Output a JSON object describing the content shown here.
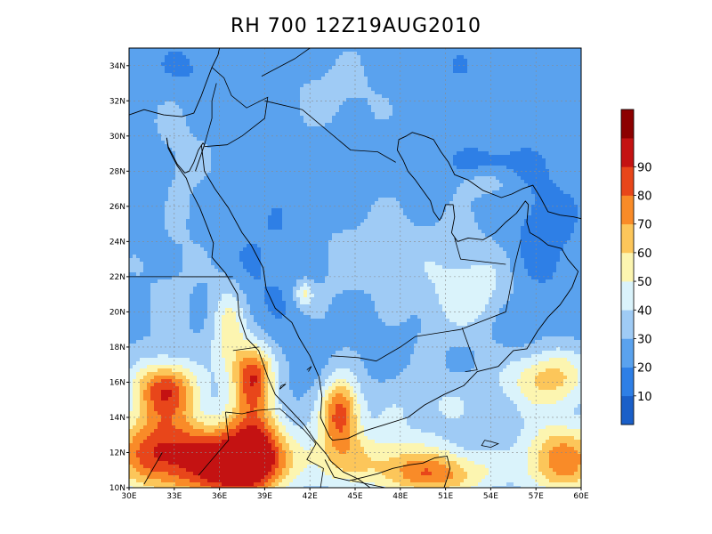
{
  "title": "RH 700 12Z19AUG2010",
  "map": {
    "lon_range": [
      30,
      60
    ],
    "lat_range": [
      10,
      35
    ],
    "lon_ticks": [
      "30E",
      "33E",
      "36E",
      "39E",
      "42E",
      "45E",
      "48E",
      "51E",
      "54E",
      "57E",
      "60E"
    ],
    "lat_ticks": [
      "10N",
      "12N",
      "14N",
      "16N",
      "18N",
      "20N",
      "22N",
      "24N",
      "26N",
      "28N",
      "30N",
      "32N",
      "34N"
    ],
    "grid": true
  },
  "colorbar": {
    "labels": [
      "10",
      "20",
      "30",
      "40",
      "50",
      "60",
      "70",
      "80",
      "90"
    ],
    "levels": [
      0,
      10,
      20,
      30,
      40,
      50,
      60,
      70,
      80,
      90,
      100
    ],
    "colors": [
      "#1a5fc8",
      "#2e7fe6",
      "#5aa2ee",
      "#9fcbf5",
      "#daf3fb",
      "#fcf5b0",
      "#fcc65a",
      "#f98b28",
      "#e8461a",
      "#c41212",
      "#8c0000"
    ]
  },
  "field": {
    "base_rh": 26,
    "features": [
      {
        "lon": 32.0,
        "lat": 12.0,
        "sx": 2.3,
        "sy": 1.7,
        "amp": 62
      },
      {
        "lon": 36.5,
        "lat": 11.2,
        "sx": 2.0,
        "sy": 1.6,
        "amp": 62
      },
      {
        "lon": 38.5,
        "lat": 12.5,
        "sx": 1.3,
        "sy": 2.0,
        "amp": 45
      },
      {
        "lon": 32.4,
        "lat": 15.6,
        "sx": 1.5,
        "sy": 1.1,
        "amp": 55
      },
      {
        "lon": 38.2,
        "lat": 16.4,
        "sx": 0.9,
        "sy": 1.3,
        "amp": 58
      },
      {
        "lon": 44.0,
        "lat": 14.3,
        "sx": 0.9,
        "sy": 1.4,
        "amp": 55
      },
      {
        "lon": 36.6,
        "lat": 19.0,
        "sx": 0.8,
        "sy": 1.8,
        "amp": 30
      },
      {
        "lon": 41.6,
        "lat": 21.0,
        "sx": 0.45,
        "sy": 0.55,
        "amp": 25
      },
      {
        "lon": 45.0,
        "lat": 11.6,
        "sx": 4.5,
        "sy": 1.3,
        "amp": 30
      },
      {
        "lon": 50.5,
        "lat": 10.7,
        "sx": 2.5,
        "sy": 0.9,
        "amp": 40
      },
      {
        "lon": 58.8,
        "lat": 11.6,
        "sx": 2.0,
        "sy": 1.5,
        "amp": 50
      },
      {
        "lon": 57.8,
        "lat": 16.2,
        "sx": 2.0,
        "sy": 1.2,
        "amp": 38
      },
      {
        "lon": 50.0,
        "lat": 14.8,
        "sx": 3.0,
        "sy": 1.2,
        "amp": 14
      },
      {
        "lon": 51.5,
        "lat": 21.5,
        "sx": 2.2,
        "sy": 2.4,
        "amp": 14
      },
      {
        "lon": 54.0,
        "lat": 21.0,
        "sx": 1.8,
        "sy": 1.4,
        "amp": 12
      },
      {
        "lon": 46.5,
        "lat": 23.5,
        "sx": 2.0,
        "sy": 1.8,
        "amp": 8
      },
      {
        "lon": 33.0,
        "lat": 21.0,
        "sx": 1.8,
        "sy": 4.0,
        "amp": 6
      },
      {
        "lon": 43.0,
        "lat": 22.0,
        "sx": 1.5,
        "sy": 2.2,
        "amp": 6
      },
      {
        "lon": 53.5,
        "lat": 27.3,
        "sx": 1.2,
        "sy": 0.5,
        "amp": 12
      },
      {
        "lon": 57.5,
        "lat": 24.5,
        "sx": 1.5,
        "sy": 2.5,
        "amp": -12
      },
      {
        "lon": 55.5,
        "lat": 19.8,
        "sx": 1.2,
        "sy": 1.6,
        "amp": -8
      },
      {
        "lon": 54.0,
        "lat": 28.5,
        "sx": 1.8,
        "sy": 0.8,
        "amp": -10
      },
      {
        "lon": 39.5,
        "lat": 22.5,
        "sx": 2.5,
        "sy": 2.8,
        "amp": -7
      },
      {
        "lon": 34.5,
        "lat": 33.8,
        "sx": 2.0,
        "sy": 1.2,
        "amp": -8
      },
      {
        "lon": 31.5,
        "lat": 26.5,
        "sx": 0.8,
        "sy": 1.8,
        "amp": -8
      },
      {
        "lon": 44.0,
        "lat": 32.5,
        "sx": 2.5,
        "sy": 1.5,
        "amp": 7
      },
      {
        "lon": 52.0,
        "lat": 33.5,
        "sx": 4.0,
        "sy": 1.5,
        "amp": -4
      },
      {
        "lon": 33.0,
        "lat": 29.0,
        "sx": 1.5,
        "sy": 2.5,
        "amp": 6
      }
    ]
  },
  "map_outlines": {
    "coast": [
      [
        [
          30.0,
          31.2
        ],
        [
          31.0,
          31.5
        ],
        [
          32.3,
          31.2
        ],
        [
          33.5,
          31.1
        ],
        [
          34.3,
          31.3
        ],
        [
          34.8,
          32.3
        ],
        [
          35.1,
          33.0
        ],
        [
          35.5,
          33.9
        ],
        [
          35.9,
          34.6
        ],
        [
          36.0,
          35.0
        ]
      ],
      [
        [
          32.5,
          29.9
        ],
        [
          32.6,
          29.3
        ],
        [
          33.2,
          28.3
        ],
        [
          33.8,
          27.6
        ],
        [
          34.1,
          26.9
        ],
        [
          34.7,
          25.9
        ],
        [
          35.2,
          24.8
        ],
        [
          35.6,
          23.9
        ],
        [
          35.5,
          23.1
        ],
        [
          36.4,
          22.2
        ],
        [
          37.2,
          21.0
        ],
        [
          37.3,
          19.8
        ],
        [
          37.8,
          18.5
        ],
        [
          38.6,
          17.8
        ],
        [
          39.2,
          16.3
        ],
        [
          39.7,
          15.3
        ],
        [
          40.5,
          14.6
        ],
        [
          41.6,
          13.6
        ],
        [
          42.4,
          12.6
        ],
        [
          43.1,
          11.9
        ],
        [
          43.4,
          11.5
        ],
        [
          44.2,
          10.9
        ],
        [
          45.2,
          10.5
        ],
        [
          46.0,
          10.0
        ]
      ],
      [
        [
          34.4,
          28.0
        ],
        [
          34.8,
          29.0
        ],
        [
          35.0,
          29.5
        ],
        [
          34.9,
          29.6
        ],
        [
          34.6,
          29.2
        ],
        [
          34.3,
          28.5
        ],
        [
          34.0,
          28.0
        ],
        [
          33.7,
          27.9
        ],
        [
          33.2,
          28.4
        ],
        [
          32.6,
          29.4
        ],
        [
          32.5,
          29.9
        ]
      ],
      [
        [
          34.8,
          29.5
        ],
        [
          35.0,
          28.0
        ],
        [
          35.7,
          27.0
        ],
        [
          36.6,
          25.9
        ],
        [
          37.5,
          24.5
        ],
        [
          38.1,
          23.8
        ],
        [
          38.9,
          22.5
        ],
        [
          39.1,
          21.3
        ],
        [
          39.7,
          20.2
        ],
        [
          40.8,
          19.4
        ],
        [
          41.3,
          18.5
        ],
        [
          42.0,
          17.5
        ],
        [
          42.6,
          16.3
        ],
        [
          42.8,
          15.2
        ],
        [
          42.7,
          14.0
        ],
        [
          43.3,
          12.9
        ],
        [
          43.5,
          12.7
        ],
        [
          44.5,
          12.8
        ],
        [
          45.5,
          13.2
        ],
        [
          47.0,
          13.6
        ],
        [
          48.5,
          14.0
        ],
        [
          49.6,
          14.7
        ],
        [
          50.9,
          15.3
        ],
        [
          52.2,
          15.8
        ],
        [
          53.1,
          16.6
        ],
        [
          54.5,
          16.9
        ],
        [
          55.5,
          17.8
        ],
        [
          56.4,
          17.9
        ],
        [
          57.1,
          18.9
        ],
        [
          57.8,
          19.7
        ],
        [
          58.6,
          20.4
        ],
        [
          59.4,
          21.4
        ],
        [
          59.8,
          22.3
        ],
        [
          59.1,
          23.0
        ],
        [
          58.7,
          23.6
        ],
        [
          57.8,
          23.8
        ],
        [
          57.2,
          24.2
        ],
        [
          56.6,
          24.5
        ],
        [
          56.4,
          25.1
        ],
        [
          56.5,
          26.1
        ],
        [
          56.3,
          26.3
        ],
        [
          55.7,
          25.6
        ],
        [
          55.0,
          25.1
        ],
        [
          54.3,
          24.5
        ],
        [
          53.5,
          24.1
        ],
        [
          52.5,
          24.2
        ],
        [
          51.8,
          24.0
        ],
        [
          51.4,
          24.5
        ],
        [
          51.6,
          25.4
        ],
        [
          51.5,
          26.1
        ],
        [
          51.0,
          26.1
        ],
        [
          50.8,
          25.5
        ],
        [
          50.6,
          25.2
        ],
        [
          50.2,
          25.7
        ],
        [
          50.0,
          26.3
        ],
        [
          49.5,
          26.9
        ],
        [
          49.0,
          27.5
        ],
        [
          48.5,
          28.0
        ],
        [
          48.2,
          28.6
        ],
        [
          47.8,
          29.2
        ],
        [
          47.9,
          29.8
        ],
        [
          48.4,
          30.0
        ],
        [
          48.8,
          30.2
        ],
        [
          49.6,
          30.0
        ],
        [
          50.2,
          29.8
        ],
        [
          50.7,
          29.1
        ],
        [
          51.2,
          28.5
        ],
        [
          51.6,
          27.8
        ],
        [
          52.5,
          27.5
        ],
        [
          53.5,
          26.9
        ],
        [
          54.7,
          26.5
        ],
        [
          55.4,
          26.7
        ],
        [
          56.1,
          27.0
        ],
        [
          56.8,
          27.2
        ],
        [
          57.3,
          26.5
        ],
        [
          57.8,
          25.7
        ],
        [
          58.6,
          25.5
        ],
        [
          59.5,
          25.4
        ],
        [
          60.0,
          25.3
        ]
      ],
      [
        [
          43.0,
          11.6
        ],
        [
          43.6,
          10.6
        ],
        [
          44.6,
          10.4
        ],
        [
          45.6,
          10.6
        ],
        [
          46.5,
          10.8
        ],
        [
          47.5,
          11.1
        ],
        [
          48.6,
          11.3
        ],
        [
          49.5,
          11.4
        ],
        [
          50.3,
          11.7
        ],
        [
          51.1,
          11.8
        ],
        [
          51.3,
          11.1
        ],
        [
          51.1,
          10.5
        ],
        [
          50.9,
          10.0
        ]
      ]
    ],
    "borders": [
      [
        [
          36.9,
          22.0
        ],
        [
          31.5,
          22.0
        ],
        [
          30.0,
          22.0
        ]
      ],
      [
        [
          35.5,
          33.9
        ],
        [
          36.3,
          33.3
        ],
        [
          36.8,
          32.3
        ],
        [
          37.8,
          31.6
        ],
        [
          39.2,
          32.2
        ],
        [
          39.0,
          31.0
        ],
        [
          37.5,
          30.0
        ],
        [
          36.5,
          29.5
        ],
        [
          35.0,
          29.4
        ]
      ],
      [
        [
          38.8,
          33.4
        ],
        [
          41.0,
          34.4
        ],
        [
          42.0,
          35.0
        ]
      ],
      [
        [
          39.0,
          32.0
        ],
        [
          41.5,
          31.5
        ],
        [
          44.7,
          29.2
        ],
        [
          46.5,
          29.1
        ],
        [
          47.7,
          28.5
        ]
      ],
      [
        [
          35.8,
          33.0
        ],
        [
          35.5,
          32.0
        ],
        [
          35.5,
          31.0
        ],
        [
          35.0,
          29.5
        ]
      ],
      [
        [
          55.0,
          22.7
        ],
        [
          52.0,
          23.0
        ],
        [
          51.6,
          24.2
        ]
      ],
      [
        [
          56.0,
          24.1
        ],
        [
          55.6,
          22.7
        ],
        [
          55.0,
          20.0
        ],
        [
          52.0,
          19.0
        ],
        [
          49.0,
          18.6
        ],
        [
          48.0,
          18.0
        ],
        [
          46.4,
          17.2
        ],
        [
          45.2,
          17.4
        ],
        [
          43.4,
          17.5
        ]
      ],
      [
        [
          52.3,
          16.6
        ],
        [
          53.1,
          16.7
        ],
        [
          52.1,
          19.1
        ]
      ],
      [
        [
          33.4,
          22.0
        ],
        [
          36.8,
          22.0
        ]
      ],
      [
        [
          36.9,
          17.8
        ],
        [
          38.6,
          18.0
        ]
      ],
      [
        [
          36.4,
          14.3
        ],
        [
          36.6,
          12.7
        ],
        [
          35.4,
          11.5
        ],
        [
          34.6,
          10.7
        ]
      ],
      [
        [
          36.4,
          14.3
        ],
        [
          37.5,
          14.2
        ],
        [
          38.5,
          14.4
        ],
        [
          40.0,
          14.5
        ],
        [
          41.6,
          13.3
        ],
        [
          42.4,
          12.5
        ]
      ],
      [
        [
          42.4,
          12.5
        ],
        [
          41.8,
          11.6
        ],
        [
          42.9,
          11.1
        ],
        [
          42.7,
          10.0
        ]
      ],
      [
        [
          44.8,
          10.4
        ],
        [
          47.0,
          10.0
        ]
      ],
      [
        [
          32.2,
          12.0
        ],
        [
          31.0,
          10.2
        ]
      ]
    ],
    "islands": [
      [
        [
          53.6,
          12.7
        ],
        [
          54.1,
          12.6
        ],
        [
          54.5,
          12.5
        ],
        [
          54.0,
          12.3
        ],
        [
          53.4,
          12.4
        ],
        [
          53.6,
          12.7
        ]
      ],
      [
        [
          40.0,
          15.6
        ],
        [
          40.4,
          15.9
        ],
        [
          40.1,
          15.8
        ],
        [
          40.0,
          15.6
        ]
      ],
      [
        [
          41.8,
          16.7
        ],
        [
          42.1,
          16.9
        ],
        [
          41.9,
          16.6
        ]
      ]
    ]
  }
}
